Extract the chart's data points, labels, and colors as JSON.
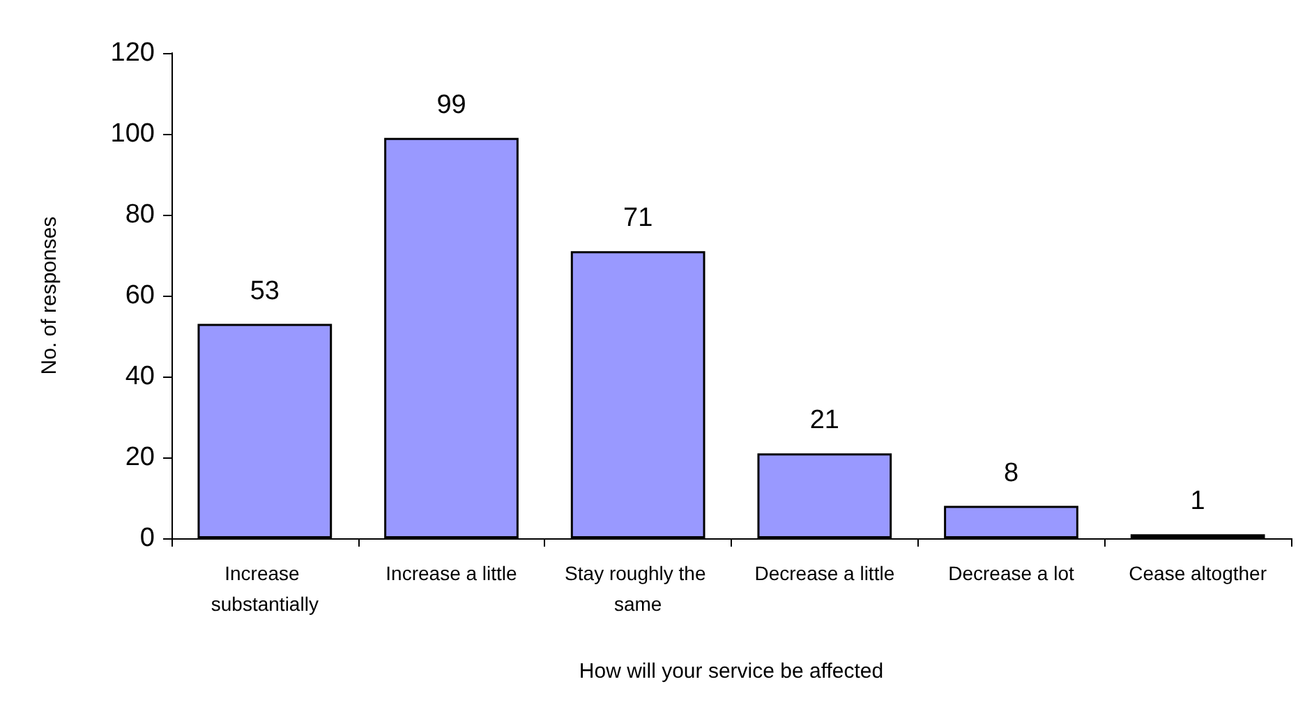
{
  "chart_data": {
    "type": "bar",
    "xlabel": "How will your service be affected",
    "ylabel": "No. of responses",
    "categories": [
      "Increase substantially",
      "Increase a little",
      "Stay roughly the same",
      "Decrease a little",
      "Decrease a lot",
      "Cease altogther"
    ],
    "values": [
      53,
      99,
      71,
      21,
      8,
      1
    ],
    "color": "#9999ff",
    "ylim": [
      0,
      120
    ],
    "yticks": [
      0,
      20,
      40,
      60,
      80,
      100,
      120
    ],
    "grid": false,
    "data_labels": true
  }
}
